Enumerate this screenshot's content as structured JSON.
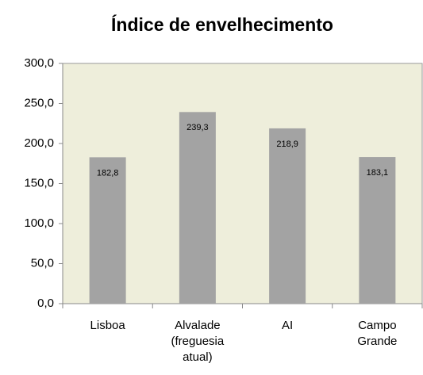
{
  "chart_data": {
    "type": "bar",
    "title": "Índice de envelhecimento",
    "categories": [
      "Lisboa",
      "Alvalade (freguesia atual)",
      "AI",
      "Campo Grande"
    ],
    "values": [
      182.8,
      239.3,
      218.9,
      183.1
    ],
    "value_labels": [
      "182,8",
      "239,3",
      "218,9",
      "183,1"
    ],
    "color": "#a3a3a3",
    "ylim": [
      0,
      300
    ],
    "yticks": [
      {
        "value": 0,
        "label": "0,0"
      },
      {
        "value": 50,
        "label": "50,0"
      },
      {
        "value": 100,
        "label": "100,0"
      },
      {
        "value": 150,
        "label": "150,0"
      },
      {
        "value": 200,
        "label": "200,0"
      },
      {
        "value": 250,
        "label": "250,0"
      },
      {
        "value": 300,
        "label": "300,0"
      }
    ],
    "grid": true
  }
}
